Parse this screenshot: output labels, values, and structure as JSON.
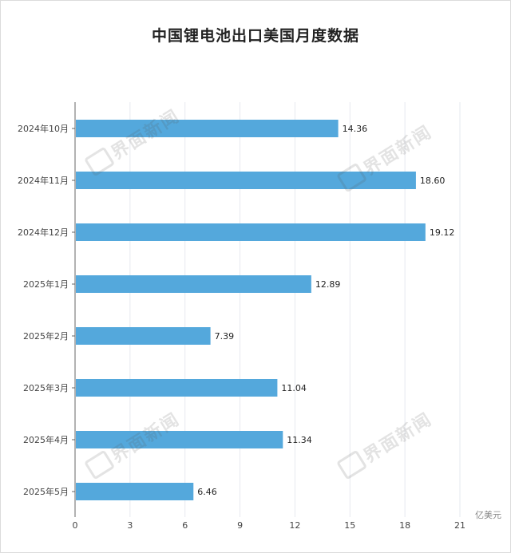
{
  "title": "中国锂电池出口美国月度数据",
  "source": "亿美元",
  "watermark": "界面新闻",
  "colors": {
    "bar": "#54a8dc",
    "grid": "#e6e9ef",
    "axis": "#666666"
  },
  "chart_data": {
    "type": "bar",
    "orientation": "horizontal",
    "title": "中国锂电池出口美国月度数据",
    "categories": [
      "2024年10月",
      "2024年11月",
      "2024年12月",
      "2025年1月",
      "2025年2月",
      "2025年3月",
      "2025年4月",
      "2025年5月"
    ],
    "values": [
      14.36,
      18.6,
      19.12,
      12.89,
      7.39,
      11.04,
      11.34,
      6.46
    ],
    "value_labels": [
      "14.36",
      "18.60",
      "19.12",
      "12.89",
      "7.39",
      "11.04",
      "11.34",
      "6.46"
    ],
    "xticks": [
      0,
      3,
      6,
      9,
      12,
      15,
      18,
      21
    ],
    "xlim": [
      0,
      21
    ],
    "unit": "亿美元",
    "grid": true
  }
}
